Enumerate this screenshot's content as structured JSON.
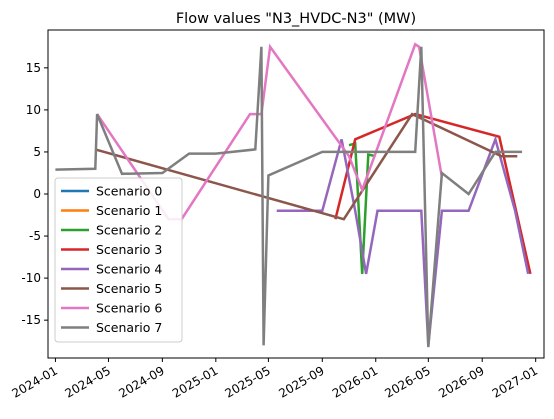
{
  "chart_data": {
    "type": "line",
    "title": "Flow values \"N3_HVDC-N3\" (MW)",
    "xlabel": "",
    "ylabel": "",
    "x_range": [
      "2023-12-15",
      "2027-01-20"
    ],
    "ylim": [
      -19.5,
      19.5
    ],
    "x_ticks": [
      "2024-01",
      "2024-05",
      "2024-09",
      "2025-01",
      "2025-05",
      "2025-09",
      "2026-01",
      "2026-05",
      "2026-09",
      "2027-01"
    ],
    "y_ticks": [
      -15,
      -10,
      -5,
      0,
      5,
      10,
      15
    ],
    "grid": false,
    "legend_position": "lower-left",
    "series": [
      {
        "name": "Scenario 0",
        "color": "#1f77b4",
        "x": [],
        "y": []
      },
      {
        "name": "Scenario 1",
        "color": "#ff7f0e",
        "x": [],
        "y": []
      },
      {
        "name": "Scenario 2",
        "color": "#2ca02c",
        "x": [
          "2025-11-01",
          "2025-11-15",
          "2025-12-01",
          "2025-12-15",
          "2026-01-01"
        ],
        "y": [
          5.8,
          6.0,
          -9.5,
          4.7,
          4.5
        ]
      },
      {
        "name": "Scenario 3",
        "color": "#d62728",
        "x": [
          "2025-10-01",
          "2025-11-15",
          "2026-04-01",
          "2026-10-10",
          "2026-12-20"
        ],
        "y": [
          -3.0,
          6.5,
          9.5,
          6.8,
          -9.5
        ]
      },
      {
        "name": "Scenario 4",
        "color": "#9467bd",
        "x": [
          "2025-05-20",
          "2025-07-01",
          "2025-09-01",
          "2025-10-15",
          "2025-11-15",
          "2025-12-10",
          "2026-01-05",
          "2026-03-01",
          "2026-04-15",
          "2026-05-01",
          "2026-06-01",
          "2026-08-01",
          "2026-10-01",
          "2026-11-15",
          "2026-12-15"
        ],
        "y": [
          -2.0,
          -2.0,
          -2.0,
          6.5,
          -2.0,
          -9.5,
          -2.0,
          -2.0,
          -2.0,
          -18.0,
          -2.0,
          -2.0,
          6.5,
          -2.0,
          -9.5
        ]
      },
      {
        "name": "Scenario 5",
        "color": "#8c564b",
        "x": [
          "2024-04-01",
          "2025-10-20",
          "2026-03-25",
          "2026-10-15",
          "2026-11-20"
        ],
        "y": [
          5.3,
          -3.0,
          9.5,
          4.5,
          4.5
        ]
      },
      {
        "name": "Scenario 6",
        "color": "#e377c2",
        "x": [
          "2024-04-05",
          "2024-09-15",
          "2024-10-15",
          "2025-03-20",
          "2025-04-15",
          "2025-05-05",
          "2025-11-01",
          "2025-12-01",
          "2026-04-01",
          "2026-04-10",
          "2026-06-01"
        ],
        "y": [
          9.5,
          -3.0,
          -3.0,
          9.5,
          9.5,
          17.5,
          4.5,
          0.5,
          17.8,
          17.5,
          2.0
        ]
      },
      {
        "name": "Scenario 7",
        "color": "#7f7f7f",
        "x": [
          "2024-01-01",
          "2024-04-01",
          "2024-04-05",
          "2024-06-01",
          "2024-09-01",
          "2024-11-01",
          "2025-01-01",
          "2025-04-01",
          "2025-04-15",
          "2025-04-20",
          "2025-05-01",
          "2025-09-01",
          "2025-11-01",
          "2026-01-01",
          "2026-04-01",
          "2026-04-15",
          "2026-05-01",
          "2026-06-01",
          "2026-08-01",
          "2026-10-01",
          "2026-12-01"
        ],
        "y": [
          2.9,
          3.0,
          9.5,
          2.4,
          2.5,
          4.8,
          4.8,
          5.3,
          17.5,
          -18.0,
          2.2,
          5.0,
          5.0,
          5.0,
          5.0,
          17.5,
          -18.2,
          2.5,
          0.0,
          5.0,
          5.0
        ]
      }
    ]
  }
}
